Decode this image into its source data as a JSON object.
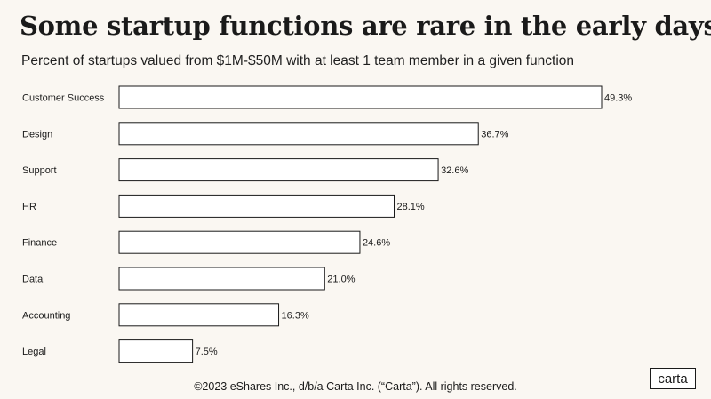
{
  "header": {
    "title": "Some startup functions are rare in the early days",
    "subtitle": "Percent of startups valued from $1M-$50M with at least 1 team member in a given function"
  },
  "footer": {
    "copyright": "©2023 eShares Inc., d/b/a Carta Inc. (“Carta”). All rights reserved.",
    "logo_text": "carta"
  },
  "chart_data": {
    "type": "bar",
    "orientation": "horizontal",
    "categories": [
      "Customer Success",
      "Design",
      "Support",
      "HR",
      "Finance",
      "Data",
      "Accounting",
      "Legal"
    ],
    "values": [
      49.3,
      36.7,
      32.6,
      28.1,
      24.6,
      21.0,
      16.3,
      7.5
    ],
    "value_labels": [
      "49.3%",
      "36.7%",
      "32.6%",
      "28.1%",
      "24.6%",
      "21.0%",
      "16.3%",
      "7.5%"
    ],
    "xlim": [
      0,
      49.3
    ],
    "grid": false,
    "bar_fill": "#ffffff",
    "bar_stroke": "#1a1a1a",
    "background": "#faf7f2"
  }
}
